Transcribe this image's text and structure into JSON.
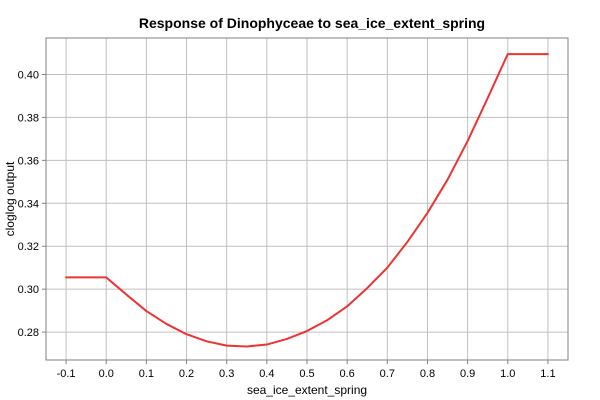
{
  "chart_data": {
    "type": "line",
    "title": "Response of Dinophyceae to sea_ice_extent_spring",
    "xlabel": "sea_ice_extent_spring",
    "ylabel": "cloglog output",
    "xlim": [
      -0.15,
      1.15
    ],
    "ylim": [
      0.267,
      0.417
    ],
    "grid": true,
    "x_ticks": [
      -0.1,
      0.0,
      0.1,
      0.2,
      0.3,
      0.4,
      0.5,
      0.6,
      0.7,
      0.8,
      0.9,
      1.0,
      1.1
    ],
    "x_tick_labels": [
      "-0.1",
      "0.0",
      "0.1",
      "0.2",
      "0.3",
      "0.4",
      "0.5",
      "0.6",
      "0.7",
      "0.8",
      "0.9",
      "1.0",
      "1.1"
    ],
    "y_ticks": [
      0.28,
      0.3,
      0.32,
      0.34,
      0.36,
      0.38,
      0.4
    ],
    "y_tick_labels": [
      "0.28",
      "0.30",
      "0.32",
      "0.34",
      "0.36",
      "0.38",
      "0.40"
    ],
    "series": [
      {
        "color": "#ee3333",
        "x": [
          -0.1,
          0.0,
          0.025,
          0.05,
          0.1,
          0.15,
          0.2,
          0.25,
          0.3,
          0.35,
          0.4,
          0.45,
          0.5,
          0.55,
          0.6,
          0.65,
          0.7,
          0.75,
          0.8,
          0.85,
          0.9,
          0.95,
          1.0,
          1.1
        ],
        "y": [
          0.3055,
          0.3055,
          0.3015,
          0.2975,
          0.2898,
          0.2838,
          0.279,
          0.2757,
          0.2737,
          0.2733,
          0.2742,
          0.2768,
          0.2805,
          0.2855,
          0.292,
          0.3005,
          0.31,
          0.322,
          0.3355,
          0.351,
          0.369,
          0.389,
          0.4095,
          0.4095
        ]
      }
    ]
  }
}
